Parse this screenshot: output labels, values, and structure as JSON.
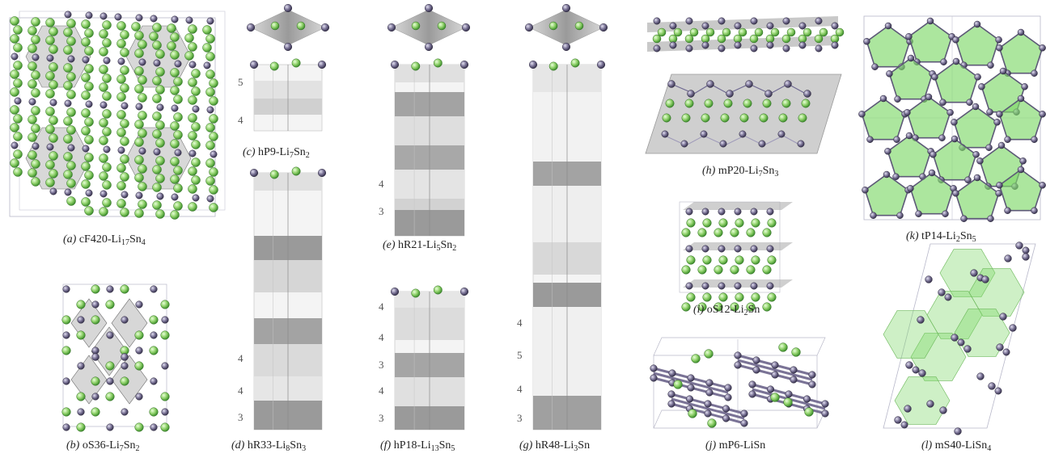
{
  "colors": {
    "li_atom": "#8fd16a",
    "sn_atom": "#7a7396",
    "light_layer": "#e6e6e6",
    "mid_layer": "#d2d2d2",
    "dark_layer": "#9a9a9a",
    "polyhedron_green": "#7fd86a"
  },
  "panels": [
    {
      "letter": "(a)",
      "formula": "cF420-Li",
      "sub1": "17",
      "mid": "Sn",
      "sub2": "4"
    },
    {
      "letter": "(b)",
      "formula": "oS36-Li",
      "sub1": "7",
      "mid": "Sn",
      "sub2": "2"
    },
    {
      "letter": "(c)",
      "formula": "hP9-Li",
      "sub1": "7",
      "mid": "Sn",
      "sub2": "2"
    },
    {
      "letter": "(d)",
      "formula": "hR33-Li",
      "sub1": "8",
      "mid": "Sn",
      "sub2": "3"
    },
    {
      "letter": "(e)",
      "formula": "hR21-Li",
      "sub1": "5",
      "mid": "Sn",
      "sub2": "2"
    },
    {
      "letter": "(f)",
      "formula": "hP18-Li",
      "sub1": "13",
      "mid": "Sn",
      "sub2": "5"
    },
    {
      "letter": "(g)",
      "formula": "hR48-Li",
      "sub1": "3",
      "mid": "Sn",
      "sub2": ""
    },
    {
      "letter": "(h)",
      "formula": "mP20-Li",
      "sub1": "7",
      "mid": "Sn",
      "sub2": "3"
    },
    {
      "letter": "(i)",
      "formula": "oS12-Li",
      "sub1": "2",
      "mid": "Sn",
      "sub2": ""
    },
    {
      "letter": "(j)",
      "formula": "mP6-LiSn",
      "sub1": "",
      "mid": "",
      "sub2": ""
    },
    {
      "letter": "(k)",
      "formula": "tP14-Li",
      "sub1": "2",
      "mid": "Sn",
      "sub2": "5"
    },
    {
      "letter": "(l)",
      "formula": "mS40-LiSn",
      "sub1": "4",
      "mid": "",
      "sub2": ""
    }
  ],
  "layer_labels": {
    "c": [
      "5",
      "4"
    ],
    "d": [
      "4",
      "4",
      "3"
    ],
    "e": [
      "4",
      "3"
    ],
    "f": [
      "4",
      "4",
      "3",
      "4",
      "3"
    ],
    "g": [
      "4",
      "5",
      "4",
      "3"
    ]
  }
}
